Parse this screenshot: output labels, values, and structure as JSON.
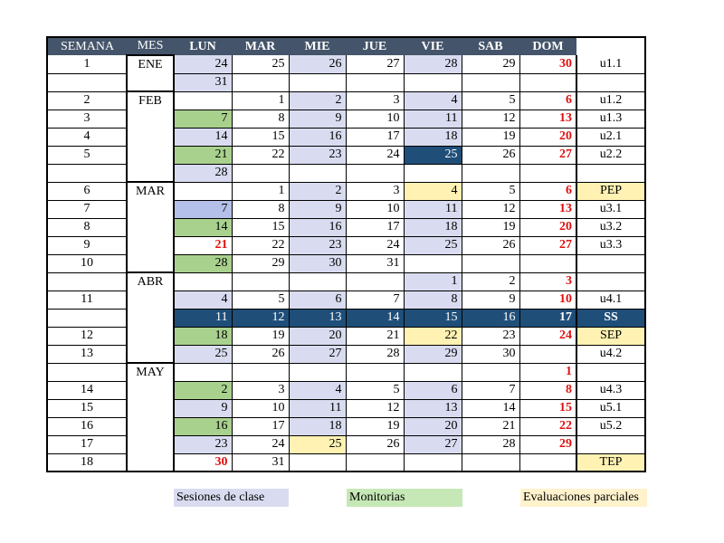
{
  "headers": [
    "SEMANA",
    "MES",
    "LUN",
    "MAR",
    "MIE",
    "JUE",
    "VIE",
    "SAB",
    "DOM",
    ""
  ],
  "rows": [
    {
      "semana": "1",
      "mes": "ENE",
      "days": [
        "24",
        "25",
        "26",
        "27",
        "28",
        "29",
        "30"
      ],
      "fill": [
        "s",
        "",
        "s",
        "",
        "s",
        "",
        ""
      ],
      "unit": "u1.1"
    },
    {
      "semana": "",
      "mes": "",
      "days": [
        "31",
        "",
        "",
        "",
        "",
        "",
        ""
      ],
      "fill": [
        "s",
        "",
        "",
        "",
        "",
        "",
        ""
      ],
      "unit": ""
    },
    {
      "semana": "2",
      "mes": "FEB",
      "days": [
        "",
        "1",
        "2",
        "3",
        "4",
        "5",
        "6"
      ],
      "fill": [
        "",
        "",
        "s",
        "",
        "s",
        "",
        ""
      ],
      "unit": "u1.2"
    },
    {
      "semana": "3",
      "mes": "",
      "days": [
        "7",
        "8",
        "9",
        "10",
        "11",
        "12",
        "13"
      ],
      "fill": [
        "m",
        "",
        "s",
        "",
        "s",
        "",
        ""
      ],
      "unit": "u1.3"
    },
    {
      "semana": "4",
      "mes": "",
      "days": [
        "14",
        "15",
        "16",
        "17",
        "18",
        "19",
        "20"
      ],
      "fill": [
        "s",
        "",
        "s",
        "",
        "s",
        "",
        ""
      ],
      "unit": "u2.1"
    },
    {
      "semana": "5",
      "mes": "",
      "days": [
        "21",
        "22",
        "23",
        "24",
        "25",
        "26",
        "27"
      ],
      "fill": [
        "m",
        "",
        "s",
        "",
        "d",
        "",
        ""
      ],
      "unit": "u2.2"
    },
    {
      "semana": "",
      "mes": "",
      "days": [
        "28",
        "",
        "",
        "",
        "",
        "",
        ""
      ],
      "fill": [
        "s",
        "",
        "",
        "",
        "",
        "",
        ""
      ],
      "unit": ""
    },
    {
      "semana": "6",
      "mes": "MAR",
      "days": [
        "",
        "1",
        "2",
        "3",
        "4",
        "5",
        "6"
      ],
      "fill": [
        "",
        "",
        "s",
        "",
        "e",
        "",
        ""
      ],
      "unit": "PEP"
    },
    {
      "semana": "7",
      "mes": "",
      "days": [
        "7",
        "8",
        "9",
        "10",
        "11",
        "12",
        "13"
      ],
      "fill": [
        "h",
        "",
        "s",
        "",
        "s",
        "",
        ""
      ],
      "unit": "u3.1"
    },
    {
      "semana": "8",
      "mes": "",
      "days": [
        "14",
        "15",
        "16",
        "17",
        "18",
        "19",
        "20"
      ],
      "fill": [
        "m",
        "",
        "s",
        "",
        "s",
        "",
        ""
      ],
      "unit": "u3.2"
    },
    {
      "semana": "9",
      "mes": "",
      "days": [
        "21",
        "22",
        "23",
        "24",
        "25",
        "26",
        "27"
      ],
      "fill": [
        "r",
        "",
        "s",
        "",
        "s",
        "",
        ""
      ],
      "unit": "u3.3"
    },
    {
      "semana": "10",
      "mes": "",
      "days": [
        "28",
        "29",
        "30",
        "31",
        "",
        "",
        ""
      ],
      "fill": [
        "m",
        "",
        "s",
        "",
        "",
        "",
        ""
      ],
      "unit": ""
    },
    {
      "semana": "",
      "mes": "ABR",
      "days": [
        "",
        "",
        "",
        "",
        "1",
        "2",
        "3"
      ],
      "fill": [
        "",
        "",
        "",
        "",
        "s",
        "",
        ""
      ],
      "unit": ""
    },
    {
      "semana": "11",
      "mes": "",
      "days": [
        "4",
        "5",
        "6",
        "7",
        "8",
        "9",
        "10"
      ],
      "fill": [
        "s",
        "",
        "s",
        "",
        "s",
        "",
        ""
      ],
      "unit": "u4.1"
    },
    {
      "semana": "",
      "mes": "",
      "days": [
        "11",
        "12",
        "13",
        "14",
        "15",
        "16",
        "17"
      ],
      "fill": [
        "",
        "",
        "",
        "",
        "",
        "",
        ""
      ],
      "unit": "SS"
    },
    {
      "semana": "12",
      "mes": "",
      "days": [
        "18",
        "19",
        "20",
        "21",
        "22",
        "23",
        "24"
      ],
      "fill": [
        "m",
        "",
        "s",
        "",
        "e",
        "",
        ""
      ],
      "unit": "SEP"
    },
    {
      "semana": "13",
      "mes": "",
      "days": [
        "25",
        "26",
        "27",
        "28",
        "29",
        "30",
        ""
      ],
      "fill": [
        "s",
        "",
        "s",
        "",
        "s",
        "",
        ""
      ],
      "unit": "u4.2"
    },
    {
      "semana": "",
      "mes": "MAY",
      "days": [
        "",
        "",
        "",
        "",
        "",
        "",
        "1"
      ],
      "fill": [
        "",
        "",
        "",
        "",
        "",
        "",
        ""
      ],
      "unit": ""
    },
    {
      "semana": "14",
      "mes": "",
      "days": [
        "2",
        "3",
        "4",
        "5",
        "6",
        "7",
        "8"
      ],
      "fill": [
        "m",
        "",
        "s",
        "",
        "s",
        "",
        ""
      ],
      "unit": "u4.3"
    },
    {
      "semana": "15",
      "mes": "",
      "days": [
        "9",
        "10",
        "11",
        "12",
        "13",
        "14",
        "15"
      ],
      "fill": [
        "s",
        "",
        "s",
        "",
        "s",
        "",
        ""
      ],
      "unit": "u5.1"
    },
    {
      "semana": "16",
      "mes": "",
      "days": [
        "16",
        "17",
        "18",
        "19",
        "20",
        "21",
        "22"
      ],
      "fill": [
        "m",
        "",
        "s",
        "",
        "s",
        "",
        ""
      ],
      "unit": "u5.2"
    },
    {
      "semana": "17",
      "mes": "",
      "days": [
        "23",
        "24",
        "25",
        "26",
        "27",
        "28",
        "29"
      ],
      "fill": [
        "s",
        "",
        "e",
        "",
        "s",
        "",
        ""
      ],
      "unit": ""
    },
    {
      "semana": "18",
      "mes": "",
      "days": [
        "30",
        "31",
        "",
        "",
        "",
        "",
        ""
      ],
      "fill": [
        "r",
        "",
        "",
        "",
        "",
        "",
        ""
      ],
      "unit": "TEP"
    }
  ],
  "legend": {
    "sesiones": "Sesiones de clase",
    "monitorias": "Monitorias",
    "evaluaciones": "Evaluaciones parciales"
  },
  "colors": {
    "header_bg": "#44546a",
    "sesiones": "#d9dcf0",
    "monitorias": "#a9d18e",
    "evaluaciones": "#fff2b3",
    "highlight_dark": "#1f4e79",
    "sunday_red": "#e01010"
  }
}
